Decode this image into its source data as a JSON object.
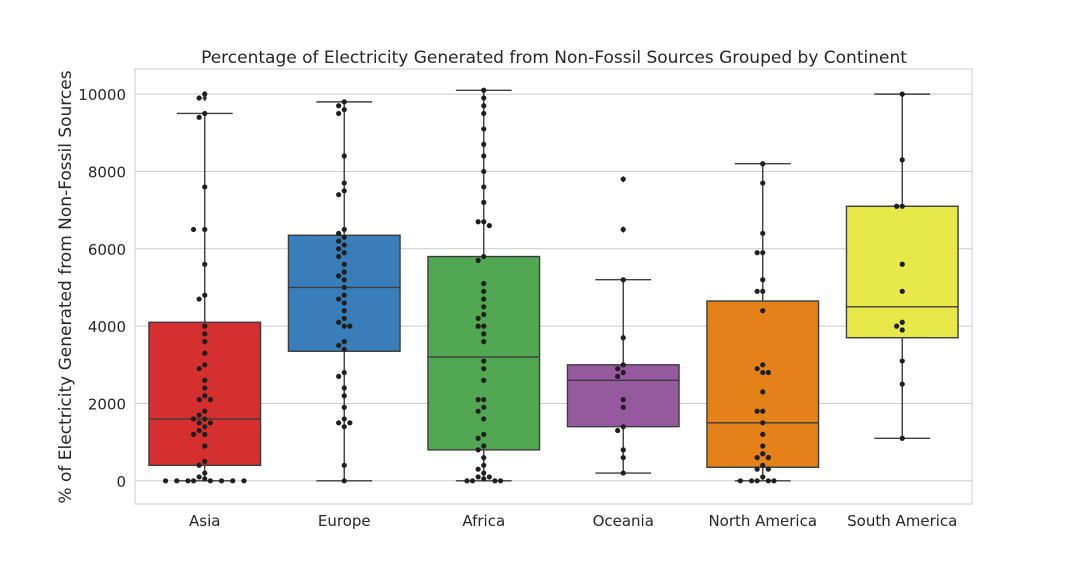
{
  "chart_data": {
    "type": "box",
    "title": "Percentage of Electricity Generated from Non-Fossil Sources Grouped by Continent",
    "xlabel": "",
    "ylabel": "% of Electricity Generated from Non-Fossil Sources",
    "ylim": [
      -600,
      10650
    ],
    "y_ticks": [
      0,
      2000,
      4000,
      6000,
      8000,
      10000
    ],
    "grid": true,
    "categories": [
      "Asia",
      "Europe",
      "Africa",
      "Oceania",
      "North America",
      "South America"
    ],
    "colors": [
      "#d62f2f",
      "#3a7dbb",
      "#52a852",
      "#955a9e",
      "#e58119",
      "#e8e84b"
    ],
    "boxes": [
      {
        "q1": 400,
        "median": 1600,
        "q3": 4100,
        "whisker_low": 0,
        "whisker_high": 9500,
        "outliers": [
          10000,
          9900
        ]
      },
      {
        "q1": 3350,
        "median": 5000,
        "q3": 6350,
        "whisker_low": 0,
        "whisker_high": 9800,
        "outliers": []
      },
      {
        "q1": 800,
        "median": 3200,
        "q3": 5800,
        "whisker_low": 0,
        "whisker_high": 10100,
        "outliers": []
      },
      {
        "q1": 1400,
        "median": 2600,
        "q3": 3000,
        "whisker_low": 200,
        "whisker_high": 5200,
        "outliers": [
          7800,
          6500
        ]
      },
      {
        "q1": 350,
        "median": 1500,
        "q3": 4650,
        "whisker_low": 0,
        "whisker_high": 8200,
        "outliers": []
      },
      {
        "q1": 3700,
        "median": 4500,
        "q3": 7100,
        "whisker_low": 1100,
        "whisker_high": 10000,
        "outliers": []
      }
    ],
    "points": [
      [
        10000,
        9900,
        9500,
        9400,
        7600,
        6500,
        6500,
        5600,
        4800,
        4700,
        4000,
        3800,
        3600,
        3300,
        3000,
        2900,
        2600,
        2400,
        2200,
        2100,
        2100,
        1800,
        1700,
        1600,
        1600,
        1500,
        1500,
        1400,
        1300,
        1200,
        1200,
        900,
        500,
        400,
        200,
        100,
        50,
        0,
        0,
        0,
        0,
        0,
        0,
        0,
        0
      ],
      [
        9800,
        9700,
        9600,
        9500,
        8400,
        7700,
        7500,
        7400,
        6500,
        6400,
        6300,
        6200,
        6100,
        6000,
        5900,
        5800,
        5600,
        5400,
        5300,
        5200,
        5000,
        4800,
        4700,
        4600,
        4400,
        4200,
        4100,
        4000,
        4000,
        3600,
        3500,
        3400,
        2800,
        2700,
        2400,
        2200,
        1900,
        1600,
        1500,
        1500,
        1400,
        400,
        0
      ],
      [
        10100,
        9900,
        9700,
        9500,
        9100,
        8700,
        8400,
        8000,
        7600,
        7200,
        6700,
        6700,
        6600,
        5800,
        5700,
        5100,
        4900,
        4700,
        4500,
        4300,
        4200,
        4000,
        4000,
        3800,
        3600,
        3100,
        2900,
        2600,
        2100,
        2100,
        1900,
        1800,
        1600,
        1200,
        1100,
        900,
        800,
        600,
        400,
        300,
        200,
        100,
        100,
        50,
        0,
        0,
        0,
        0
      ],
      [
        7800,
        6500,
        5200,
        3700,
        3000,
        2900,
        2800,
        2700,
        2100,
        1900,
        1400,
        1300,
        800,
        600,
        200
      ],
      [
        8200,
        7700,
        6400,
        5900,
        5900,
        5200,
        4900,
        4900,
        4400,
        3000,
        2900,
        2800,
        2800,
        2300,
        1800,
        1800,
        1500,
        1200,
        900,
        700,
        600,
        600,
        400,
        300,
        300,
        100,
        0,
        0,
        0,
        0,
        0
      ],
      [
        10000,
        8300,
        7100,
        7100,
        5600,
        4900,
        4100,
        4000,
        3900,
        3100,
        2500,
        1100
      ]
    ]
  }
}
